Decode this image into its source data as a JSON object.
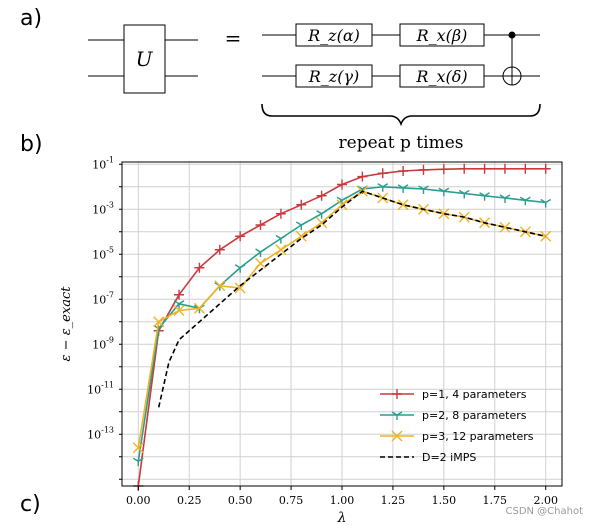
{
  "panels": {
    "a": "a)",
    "b": "b)",
    "c": "c)"
  },
  "circuit": {
    "unitary": "U",
    "equals": "=",
    "gates_top": [
      "R_z(α)",
      "R_x(β)"
    ],
    "gates_bottom": [
      "R_z(γ)",
      "R_x(δ)"
    ],
    "repeat_label": "repeat p times"
  },
  "watermark": "CSDN @Chahot",
  "chart_data": {
    "type": "line",
    "title": "",
    "xlabel": "λ",
    "ylabel": "ε − ε_exact",
    "x_ticks": [
      "0.00",
      "0.25",
      "0.50",
      "0.75",
      "1.00",
      "1.25",
      "1.50",
      "1.75",
      "2.00"
    ],
    "y_ticks": [
      "10^-13",
      "10^-11",
      "10^-9",
      "10^-7",
      "10^-5",
      "10^-3",
      "10^-1"
    ],
    "y_scale": "log",
    "xlim": [
      -0.08,
      2.08
    ],
    "ylim_log10": [
      -15.3,
      -0.9
    ],
    "grid": true,
    "legend_position": "lower-right",
    "series": [
      {
        "name": "p=1, 4 parameters",
        "color": "#c9393d",
        "marker": "plus",
        "line": "solid",
        "x": [
          0.0,
          0.1,
          0.2,
          0.3,
          0.4,
          0.5,
          0.6,
          0.7,
          0.8,
          0.9,
          1.0,
          1.1,
          1.2,
          1.3,
          1.4,
          1.5,
          1.6,
          1.7,
          1.8,
          1.9,
          2.0
        ],
        "y_log10": [
          -16,
          -8.4,
          -6.8,
          -5.6,
          -4.8,
          -4.2,
          -3.7,
          -3.2,
          -2.8,
          -2.4,
          -1.9,
          -1.55,
          -1.4,
          -1.3,
          -1.25,
          -1.22,
          -1.2,
          -1.2,
          -1.2,
          -1.2,
          -1.2
        ]
      },
      {
        "name": "p=2, 8 parameters",
        "color": "#2a9d8f",
        "marker": "tri",
        "line": "solid",
        "x": [
          0.0,
          0.1,
          0.2,
          0.3,
          0.4,
          0.5,
          0.6,
          0.7,
          0.8,
          0.9,
          1.0,
          1.1,
          1.2,
          1.3,
          1.4,
          1.5,
          1.6,
          1.7,
          1.8,
          1.9,
          2.0
        ],
        "y_log10": [
          -14.2,
          -8.3,
          -7.2,
          -7.4,
          -6.4,
          -5.6,
          -4.9,
          -4.3,
          -3.7,
          -3.2,
          -2.6,
          -2.1,
          -2.0,
          -2.05,
          -2.1,
          -2.2,
          -2.3,
          -2.4,
          -2.5,
          -2.6,
          -2.7
        ]
      },
      {
        "name": "p=3, 12 parameters",
        "color": "#f0b323",
        "marker": "x",
        "line": "solid",
        "x": [
          0.0,
          0.1,
          0.2,
          0.3,
          0.4,
          0.5,
          0.6,
          0.7,
          0.8,
          0.9,
          1.0,
          1.1,
          1.2,
          1.3,
          1.4,
          1.5,
          1.6,
          1.7,
          1.8,
          1.9,
          2.0
        ],
        "y_log10": [
          -13.6,
          -8.0,
          -7.5,
          -7.4,
          -6.4,
          -6.5,
          -5.4,
          -4.8,
          -4.2,
          -3.6,
          -2.8,
          -2.2,
          -2.5,
          -2.8,
          -3.0,
          -3.2,
          -3.35,
          -3.6,
          -3.8,
          -4.0,
          -4.2
        ]
      },
      {
        "name": "D=2  iMPS",
        "color": "#000000",
        "marker": "none",
        "line": "dashed",
        "x": [
          0.1,
          0.15,
          0.2,
          0.3,
          0.4,
          0.5,
          0.6,
          0.7,
          0.8,
          0.9,
          1.0,
          1.1,
          1.2,
          1.3,
          1.4,
          1.5,
          1.6,
          1.7,
          1.8,
          1.9,
          2.0
        ],
        "y_log10": [
          -11.8,
          -9.8,
          -8.8,
          -8.0,
          -7.2,
          -6.4,
          -5.7,
          -5.0,
          -4.3,
          -3.7,
          -2.9,
          -2.2,
          -2.5,
          -2.8,
          -3.0,
          -3.2,
          -3.35,
          -3.6,
          -3.8,
          -4.0,
          -4.2
        ]
      }
    ]
  }
}
